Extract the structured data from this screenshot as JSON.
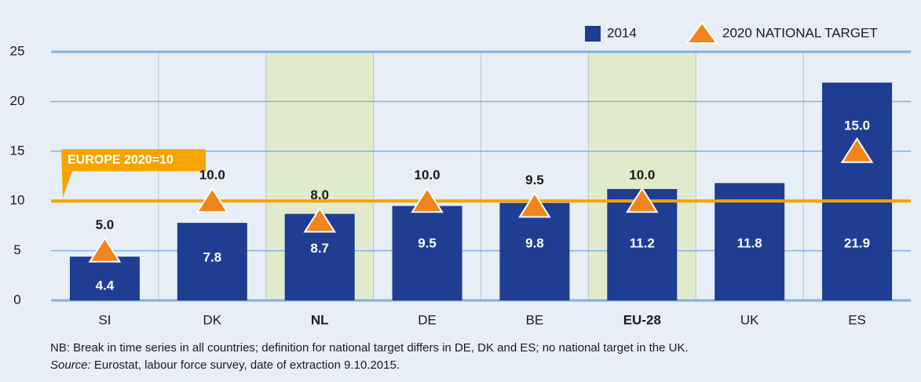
{
  "chart_data": {
    "type": "bar",
    "categories": [
      "SI",
      "DK",
      "NL",
      "DE",
      "BE",
      "EU-28",
      "UK",
      "ES"
    ],
    "highlighted": [
      false,
      false,
      true,
      false,
      false,
      true,
      false,
      false
    ],
    "series": [
      {
        "name": "2014",
        "color": "#1f3d91",
        "values": [
          4.4,
          7.8,
          8.7,
          9.5,
          9.8,
          11.2,
          11.8,
          21.9
        ]
      },
      {
        "name": "2020 NATIONAL TARGET",
        "color": "#f0851e",
        "marker": "triangle",
        "values": [
          5,
          10,
          8,
          10,
          9.5,
          10,
          null,
          15
        ],
        "value_labels": [
          "5.0",
          "10.0",
          "8.0",
          "10.0",
          "9.5",
          "10.0",
          null,
          "15.0"
        ]
      }
    ],
    "reference_line": {
      "value": 10,
      "label": "EUROPE 2020=10",
      "color": "#f5a400"
    },
    "ylim": [
      0,
      25
    ],
    "yticks": [
      0,
      5,
      10,
      15,
      20,
      25
    ],
    "grid": true,
    "legend": "top-right",
    "notes": {
      "nb": "NB: Break in time series in all countries; definition for national target differs in DE, DK and ES; no national target in the UK.",
      "source_label": "Source:",
      "source_text": "Eurostat, labour force survey, date of extraction 9.10.2015."
    }
  }
}
